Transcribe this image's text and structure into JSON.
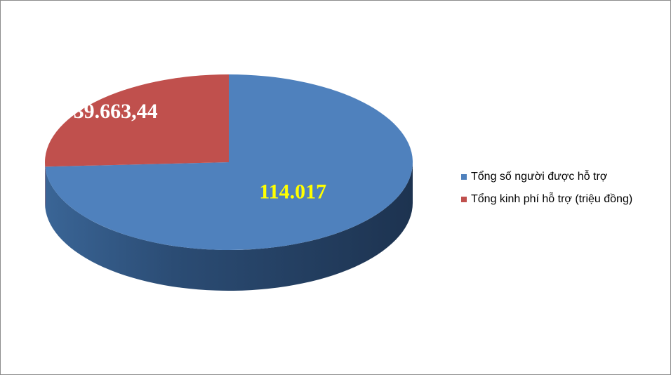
{
  "chart_data": {
    "type": "pie",
    "style": "3d",
    "series": [
      {
        "name": "Tổng số người được hỗ trợ",
        "value": 114017,
        "label": "114.017",
        "color": "#4F81BD",
        "label_color": "#FFFF00"
      },
      {
        "name": "Tổng kinh phí hỗ trợ (triệu đồng)",
        "value": 39663.44,
        "label": "39.663,44",
        "color": "#C0504D",
        "label_color": "#FFFFFF"
      }
    ],
    "legend_position": "right"
  }
}
